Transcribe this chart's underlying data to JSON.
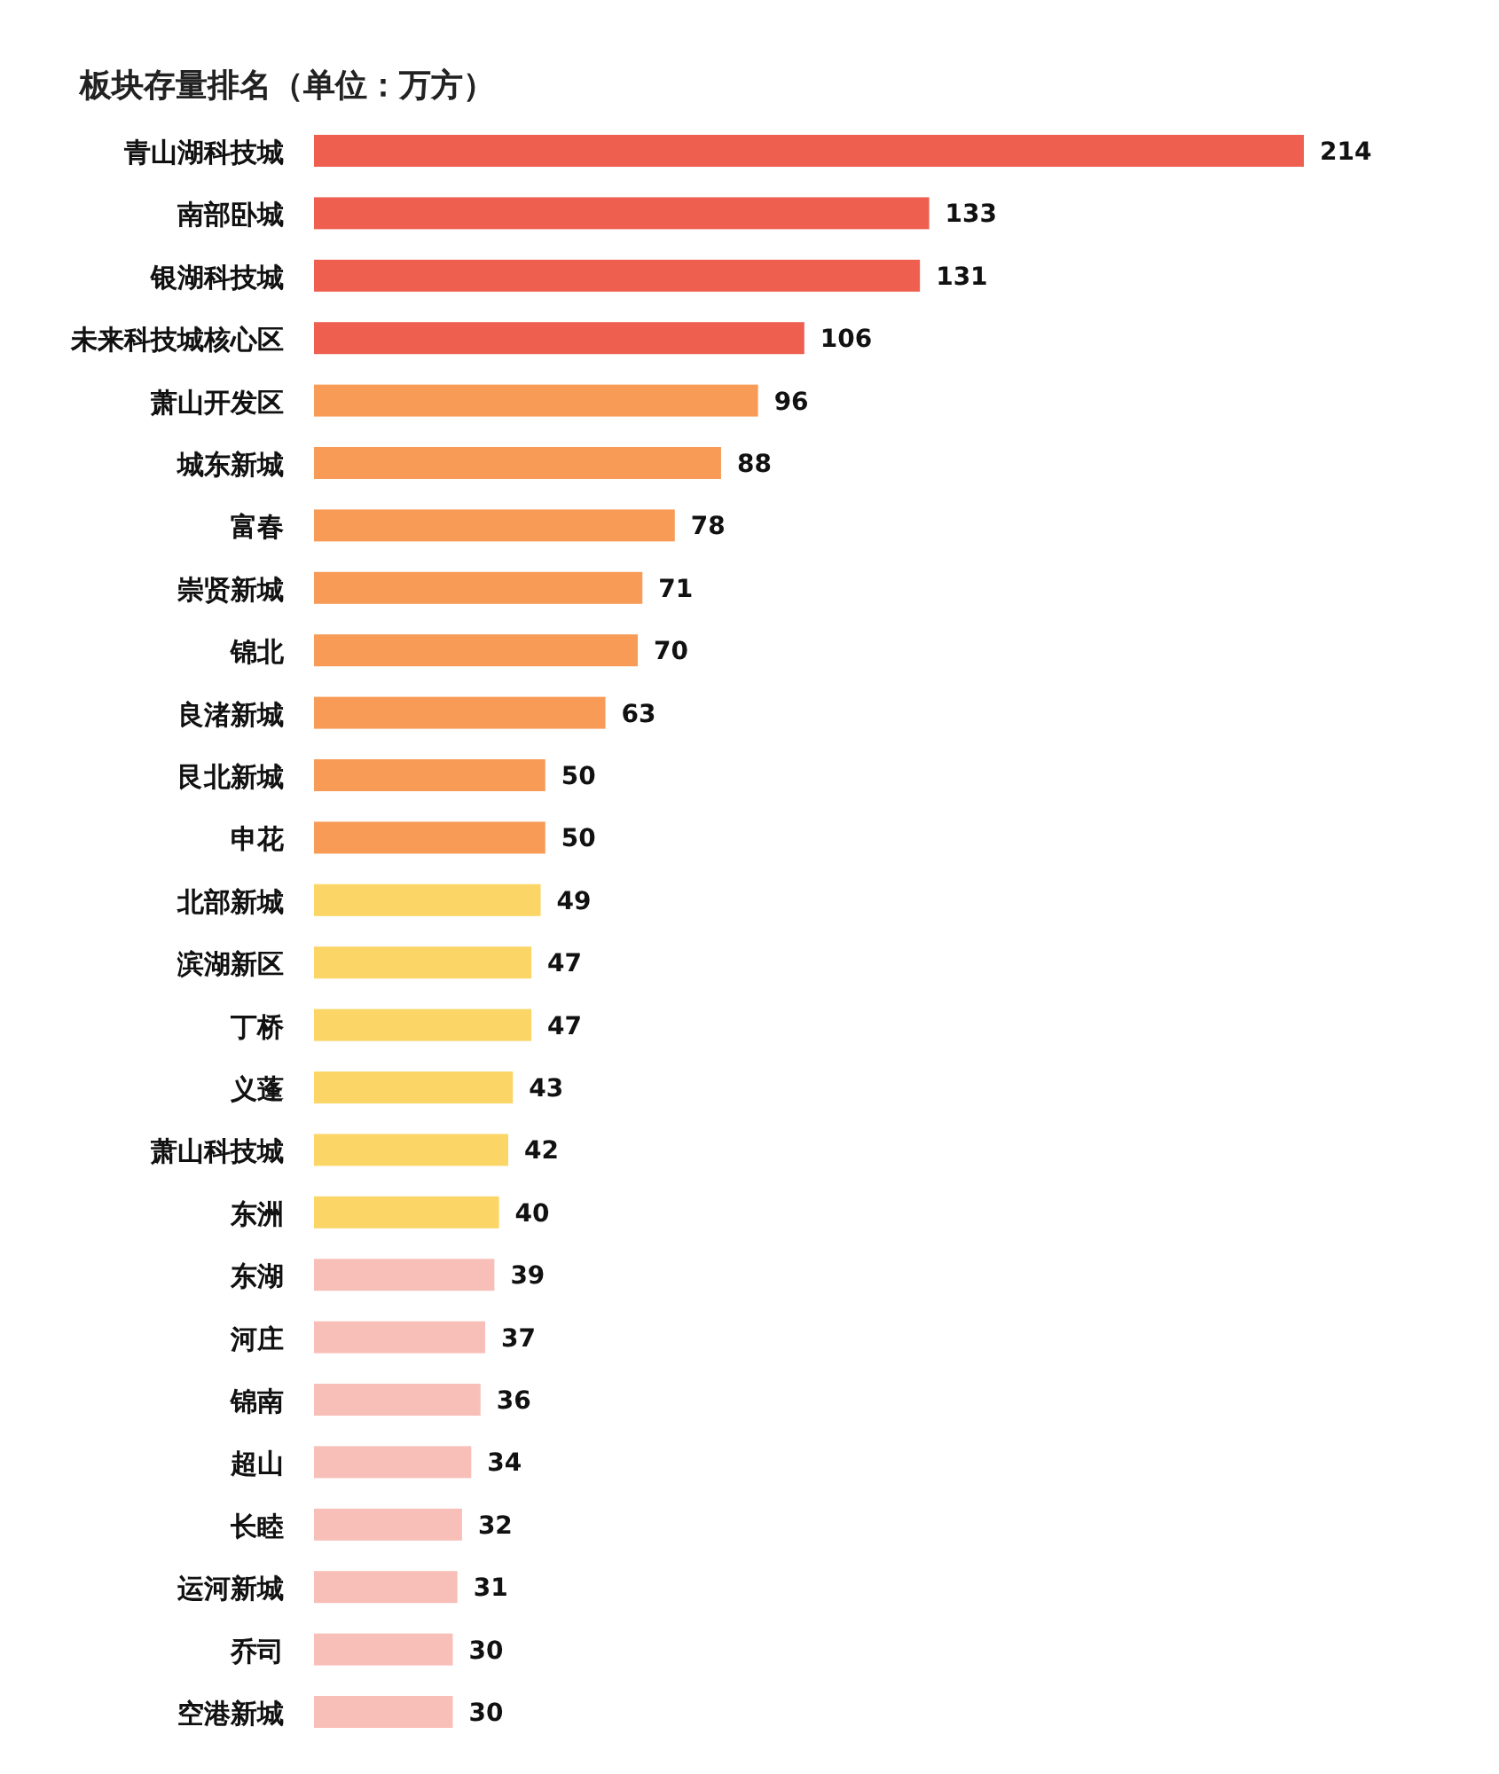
{
  "chart_data": {
    "type": "bar",
    "orientation": "horizontal",
    "title": "板块存量排名（单位：万方）",
    "data_labels": true,
    "categories": [
      "青山湖科技城",
      "南部卧城",
      "银湖科技城",
      "未来科技城核心区",
      "萧山开发区",
      "城东新城",
      "富春",
      "崇贤新城",
      "锦北",
      "良渚新城",
      "艮北新城",
      "申花",
      "北部新城",
      "滨湖新区",
      "丁桥",
      "义蓬",
      "萧山科技城",
      "东洲",
      "东湖",
      "河庄",
      "锦南",
      "超山",
      "长睦",
      "运河新城",
      "乔司",
      "空港新城"
    ],
    "values": [
      214,
      133,
      131,
      106,
      96,
      88,
      78,
      71,
      70,
      63,
      50,
      50,
      49,
      47,
      47,
      43,
      42,
      40,
      39,
      37,
      36,
      34,
      32,
      31,
      30,
      30
    ],
    "colors": [
      "#ef5f50",
      "#ef5f50",
      "#ef5f50",
      "#ef5f50",
      "#f79b57",
      "#f79b57",
      "#f79b57",
      "#f79b57",
      "#f79b57",
      "#f79b57",
      "#f79b57",
      "#f79b57",
      "#fbd565",
      "#fbd565",
      "#fbd565",
      "#fbd565",
      "#fbd565",
      "#fbd565",
      "#f8bfb8",
      "#f8bfb8",
      "#f8bfb8",
      "#f8bfb8",
      "#f8bfb8",
      "#f8bfb8",
      "#f8bfb8",
      "#f8bfb8"
    ]
  }
}
